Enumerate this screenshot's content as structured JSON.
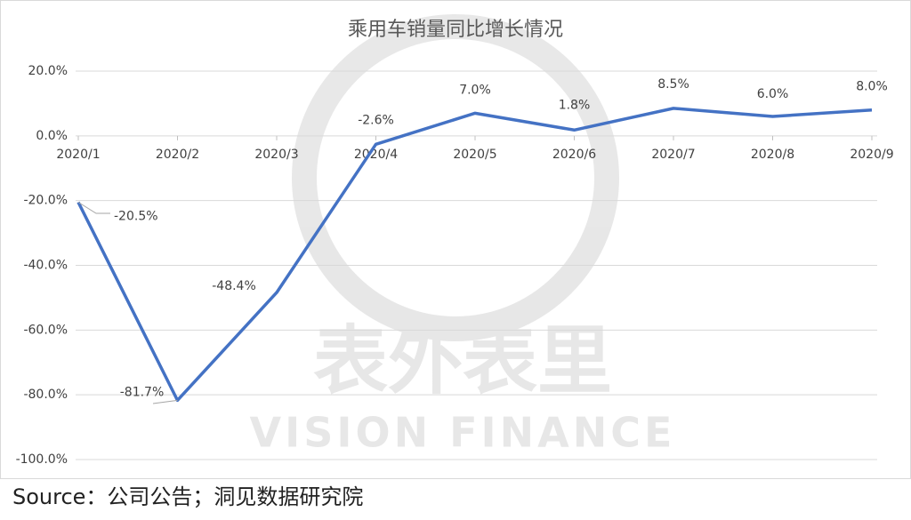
{
  "chart_data": {
    "type": "line",
    "title": "乘用车销量同比增长情况",
    "categories": [
      "2020/1",
      "2020/2",
      "2020/3",
      "2020/4",
      "2020/5",
      "2020/6",
      "2020/7",
      "2020/8",
      "2020/9"
    ],
    "series": [
      {
        "name": "乘用车销量同比增长",
        "color": "#4472c4",
        "values": [
          -20.5,
          -81.7,
          -48.4,
          -2.6,
          7.0,
          1.8,
          8.5,
          6.0,
          8.0
        ],
        "value_labels": [
          "-20.5%",
          "-81.7%",
          "-48.4%",
          "-2.6%",
          "7.0%",
          "1.8%",
          "8.5%",
          "6.0%",
          "8.0%"
        ]
      }
    ],
    "ylim": [
      -100,
      20
    ],
    "yticks": [
      {
        "value": 20,
        "label": "20.0%"
      },
      {
        "value": 0,
        "label": "0.0%"
      },
      {
        "value": -20,
        "label": "-20.0%"
      },
      {
        "value": -40,
        "label": "-40.0%"
      },
      {
        "value": -60,
        "label": "-60.0%"
      },
      {
        "value": -80,
        "label": "-80.0%"
      },
      {
        "value": -100,
        "label": "-100.0%"
      }
    ],
    "grid": true,
    "watermark": [
      "表外表里",
      "VISION FINANCE"
    ],
    "source": "Source：公司公告；洞见数据研究院"
  }
}
